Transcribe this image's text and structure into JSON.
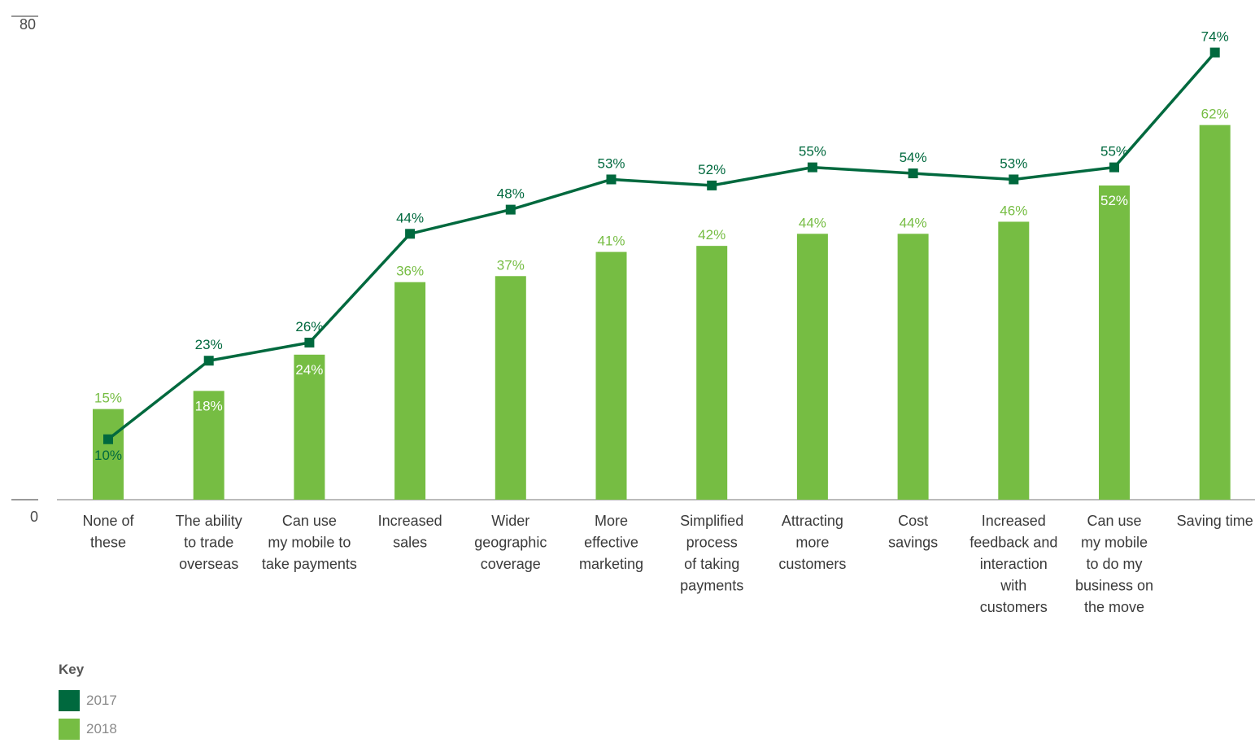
{
  "chart_data": {
    "type": "bar",
    "title": "",
    "xlabel": "",
    "ylabel": "",
    "ylim": [
      0,
      80
    ],
    "yticks": [
      "0",
      "80"
    ],
    "categories": [
      [
        "None of",
        "these"
      ],
      [
        "The ability",
        "to trade",
        "overseas"
      ],
      [
        "Can use",
        "my mobile to",
        "take payments"
      ],
      [
        "Increased",
        "sales"
      ],
      [
        "Wider",
        "geographic",
        "coverage"
      ],
      [
        "More",
        "effective",
        "marketing"
      ],
      [
        "Simplified",
        "process",
        "of taking",
        "payments"
      ],
      [
        "Attracting",
        "more",
        "customers"
      ],
      [
        "Cost",
        "savings"
      ],
      [
        "Increased",
        "feedback and",
        "interaction",
        "with",
        "customers"
      ],
      [
        "Can use",
        "my mobile",
        "to do my",
        "business on",
        "the move"
      ],
      [
        "Saving time"
      ]
    ],
    "series": [
      {
        "name": "2017",
        "type": "line",
        "color": "#00693e",
        "values": [
          10,
          23,
          26,
          44,
          48,
          53,
          52,
          55,
          54,
          53,
          55,
          74
        ],
        "labels": [
          "10%",
          "23%",
          "26%",
          "44%",
          "48%",
          "53%",
          "52%",
          "55%",
          "54%",
          "53%",
          "55%",
          "74%"
        ]
      },
      {
        "name": "2018",
        "type": "bar",
        "color": "#76bd43",
        "values": [
          15,
          18,
          24,
          36,
          37,
          41,
          42,
          44,
          44,
          46,
          52,
          62
        ],
        "labels": [
          "15%",
          "18%",
          "24%",
          "36%",
          "37%",
          "41%",
          "42%",
          "44%",
          "44%",
          "46%",
          "52%",
          "62%"
        ]
      }
    ],
    "legend": {
      "title": "Key",
      "position": "bottom-left",
      "items": [
        {
          "name": "2017",
          "color": "#00693e"
        },
        {
          "name": "2018",
          "color": "#76bd43"
        }
      ]
    }
  }
}
